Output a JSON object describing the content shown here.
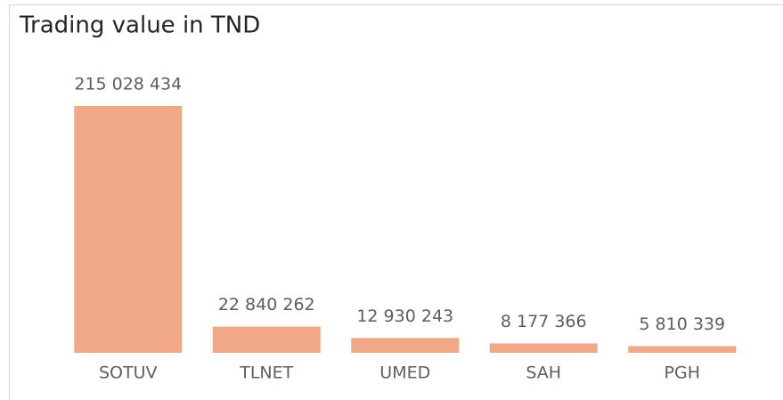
{
  "chart_data": {
    "type": "bar",
    "title": "Trading value in TND",
    "categories": [
      "SOTUV",
      "TLNET",
      "UMED",
      "SAH",
      "PGH"
    ],
    "values": [
      215028434,
      22840262,
      12930243,
      8177366,
      5810339
    ],
    "value_labels": [
      "215 028 434",
      "22 840 262",
      "12 930 243",
      "8 177 366",
      "5 810 339"
    ],
    "color": "#f0a886"
  }
}
